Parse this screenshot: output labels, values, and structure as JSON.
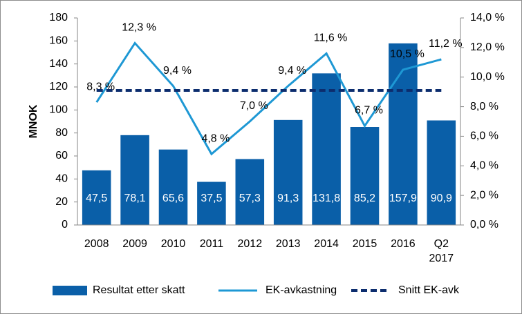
{
  "chart_data": {
    "type": "bar-line",
    "y_label": "MNOK",
    "categories": [
      "2008",
      "2009",
      "2010",
      "2011",
      "2012",
      "2013",
      "2014",
      "2015",
      "2016",
      "Q2 2017"
    ],
    "series": [
      {
        "name": "Resultat etter skatt",
        "type": "bar",
        "color": "#0a5fa8",
        "values": [
          47.5,
          78.1,
          65.6,
          37.5,
          57.3,
          91.3,
          131.8,
          85.2,
          157.9,
          90.9
        ],
        "value_labels": [
          "47,5",
          "78,1",
          "65,6",
          "37,5",
          "57,3",
          "91,3",
          "131,8",
          "85,2",
          "157,9",
          "90,9"
        ]
      },
      {
        "name": "EK-avkastning",
        "type": "line",
        "axis": "y2",
        "color": "#1e98d4",
        "values": [
          8.3,
          12.3,
          9.4,
          4.8,
          7.0,
          9.4,
          11.6,
          6.7,
          10.5,
          11.2
        ],
        "value_labels": [
          "8,3 %",
          "12,3 %",
          "9,4 %",
          "4,8 %",
          "7,0 %",
          "9,4 %",
          "11,6 %",
          "6,7 %",
          "10,5 %",
          "11,2 %"
        ]
      },
      {
        "name": "Snitt EK-avk",
        "type": "line",
        "axis": "y2",
        "color": "#0c2d6e",
        "dashed": true,
        "values": [
          9.1,
          9.1,
          9.1,
          9.1,
          9.1,
          9.1,
          9.1,
          9.1,
          9.1,
          9.1
        ]
      }
    ],
    "ylim": [
      0,
      180
    ],
    "yticks": [
      0,
      20,
      40,
      60,
      80,
      100,
      120,
      140,
      160,
      180
    ],
    "y2lim": [
      0,
      14
    ],
    "y2ticks": [
      {
        "value": 0,
        "label": "0,0 %"
      },
      {
        "value": 2,
        "label": "2,0 %"
      },
      {
        "value": 4,
        "label": "4,0 %"
      },
      {
        "value": 6,
        "label": "6,0 %"
      },
      {
        "value": 8,
        "label": "8,0 %"
      },
      {
        "value": 10,
        "label": "10,0 %"
      },
      {
        "value": 12,
        "label": "12,0 %"
      },
      {
        "value": 14,
        "label": "14,0 %"
      }
    ]
  }
}
